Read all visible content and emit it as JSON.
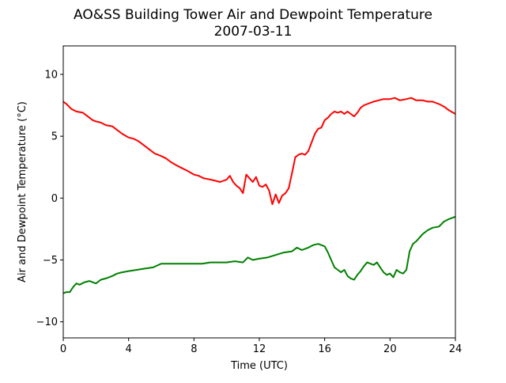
{
  "chart_data": {
    "type": "line",
    "title": "AO&SS Building Tower Air and Dewpoint Temperature",
    "subtitle": "2007-03-11",
    "xlabel": "Time (UTC)",
    "ylabel": "Air and Dewpoint Temperature (°C)",
    "xlim": [
      0,
      24
    ],
    "ylim": [
      -11.3,
      12.3
    ],
    "xticks": [
      0,
      4,
      8,
      12,
      16,
      20,
      24
    ],
    "yticks": [
      -10,
      -5,
      0,
      5,
      10
    ],
    "grid": false,
    "legend": "none",
    "series": [
      {
        "color": "#ff0000",
        "x": [
          0,
          0.2,
          0.5,
          0.8,
          1.2,
          1.5,
          1.8,
          2.0,
          2.3,
          2.6,
          3.0,
          3.3,
          3.6,
          4.0,
          4.3,
          4.6,
          5.0,
          5.3,
          5.6,
          6.0,
          6.3,
          6.6,
          7.0,
          7.3,
          7.6,
          8.0,
          8.3,
          8.6,
          9.0,
          9.3,
          9.6,
          10.0,
          10.2,
          10.4,
          10.6,
          10.8,
          11.0,
          11.2,
          11.4,
          11.6,
          11.8,
          12.0,
          12.2,
          12.4,
          12.6,
          12.8,
          13.0,
          13.2,
          13.4,
          13.6,
          13.8,
          14.0,
          14.2,
          14.4,
          14.6,
          14.8,
          15.0,
          15.2,
          15.4,
          15.6,
          15.8,
          16.0,
          16.2,
          16.4,
          16.6,
          16.8,
          17.0,
          17.2,
          17.4,
          17.6,
          17.8,
          18.0,
          18.2,
          18.4,
          18.6,
          18.8,
          19.0,
          19.3,
          19.6,
          20.0,
          20.3,
          20.6,
          21.0,
          21.3,
          21.6,
          22.0,
          22.3,
          22.6,
          23.0,
          23.3,
          23.6,
          24.0
        ],
        "values": [
          7.8,
          7.6,
          7.2,
          7.0,
          6.9,
          6.6,
          6.3,
          6.2,
          6.1,
          5.9,
          5.8,
          5.5,
          5.2,
          4.9,
          4.8,
          4.6,
          4.2,
          3.9,
          3.6,
          3.4,
          3.2,
          2.9,
          2.6,
          2.4,
          2.2,
          1.9,
          1.8,
          1.6,
          1.5,
          1.4,
          1.3,
          1.5,
          1.8,
          1.3,
          1.0,
          0.8,
          0.4,
          1.9,
          1.6,
          1.3,
          1.7,
          1.0,
          0.9,
          1.1,
          0.6,
          -0.5,
          0.3,
          -0.4,
          0.2,
          0.4,
          0.8,
          2.0,
          3.3,
          3.5,
          3.6,
          3.5,
          3.8,
          4.5,
          5.2,
          5.6,
          5.7,
          6.3,
          6.5,
          6.8,
          7.0,
          6.9,
          7.0,
          6.8,
          7.0,
          6.8,
          6.6,
          6.9,
          7.3,
          7.5,
          7.6,
          7.7,
          7.8,
          7.9,
          8.0,
          8.0,
          8.1,
          7.9,
          8.0,
          8.1,
          7.9,
          7.9,
          7.8,
          7.8,
          7.6,
          7.4,
          7.1,
          6.8
        ]
      },
      {
        "color": "#008000",
        "x": [
          0,
          0.2,
          0.4,
          0.6,
          0.8,
          1.0,
          1.3,
          1.6,
          2.0,
          2.3,
          2.6,
          3.0,
          3.3,
          3.6,
          4.0,
          4.5,
          5.0,
          5.5,
          6.0,
          6.5,
          7.0,
          7.5,
          8.0,
          8.5,
          9.0,
          9.5,
          10.0,
          10.5,
          11.0,
          11.3,
          11.6,
          12.0,
          12.5,
          13.0,
          13.5,
          14.0,
          14.3,
          14.6,
          15.0,
          15.3,
          15.6,
          16.0,
          16.2,
          16.4,
          16.6,
          16.8,
          17.0,
          17.2,
          17.4,
          17.6,
          17.8,
          18.0,
          18.2,
          18.4,
          18.6,
          18.8,
          19.0,
          19.2,
          19.4,
          19.6,
          19.8,
          20.0,
          20.2,
          20.4,
          20.6,
          20.8,
          21.0,
          21.2,
          21.4,
          21.6,
          21.8,
          22.0,
          22.3,
          22.6,
          23.0,
          23.3,
          23.6,
          24.0
        ],
        "values": [
          -7.7,
          -7.6,
          -7.6,
          -7.2,
          -6.9,
          -7.0,
          -6.8,
          -6.7,
          -6.9,
          -6.6,
          -6.5,
          -6.3,
          -6.1,
          -6.0,
          -5.9,
          -5.8,
          -5.7,
          -5.6,
          -5.3,
          -5.3,
          -5.3,
          -5.3,
          -5.3,
          -5.3,
          -5.2,
          -5.2,
          -5.2,
          -5.1,
          -5.2,
          -4.8,
          -5.0,
          -4.9,
          -4.8,
          -4.6,
          -4.4,
          -4.3,
          -4.0,
          -4.2,
          -4.0,
          -3.8,
          -3.7,
          -3.9,
          -4.4,
          -5.0,
          -5.6,
          -5.8,
          -6.0,
          -5.8,
          -6.3,
          -6.5,
          -6.6,
          -6.2,
          -5.9,
          -5.5,
          -5.2,
          -5.3,
          -5.4,
          -5.2,
          -5.6,
          -6.0,
          -6.2,
          -6.1,
          -6.4,
          -5.8,
          -6.0,
          -6.1,
          -5.8,
          -4.3,
          -3.7,
          -3.5,
          -3.2,
          -2.9,
          -2.6,
          -2.4,
          -2.3,
          -1.9,
          -1.7,
          -1.5
        ]
      }
    ]
  }
}
